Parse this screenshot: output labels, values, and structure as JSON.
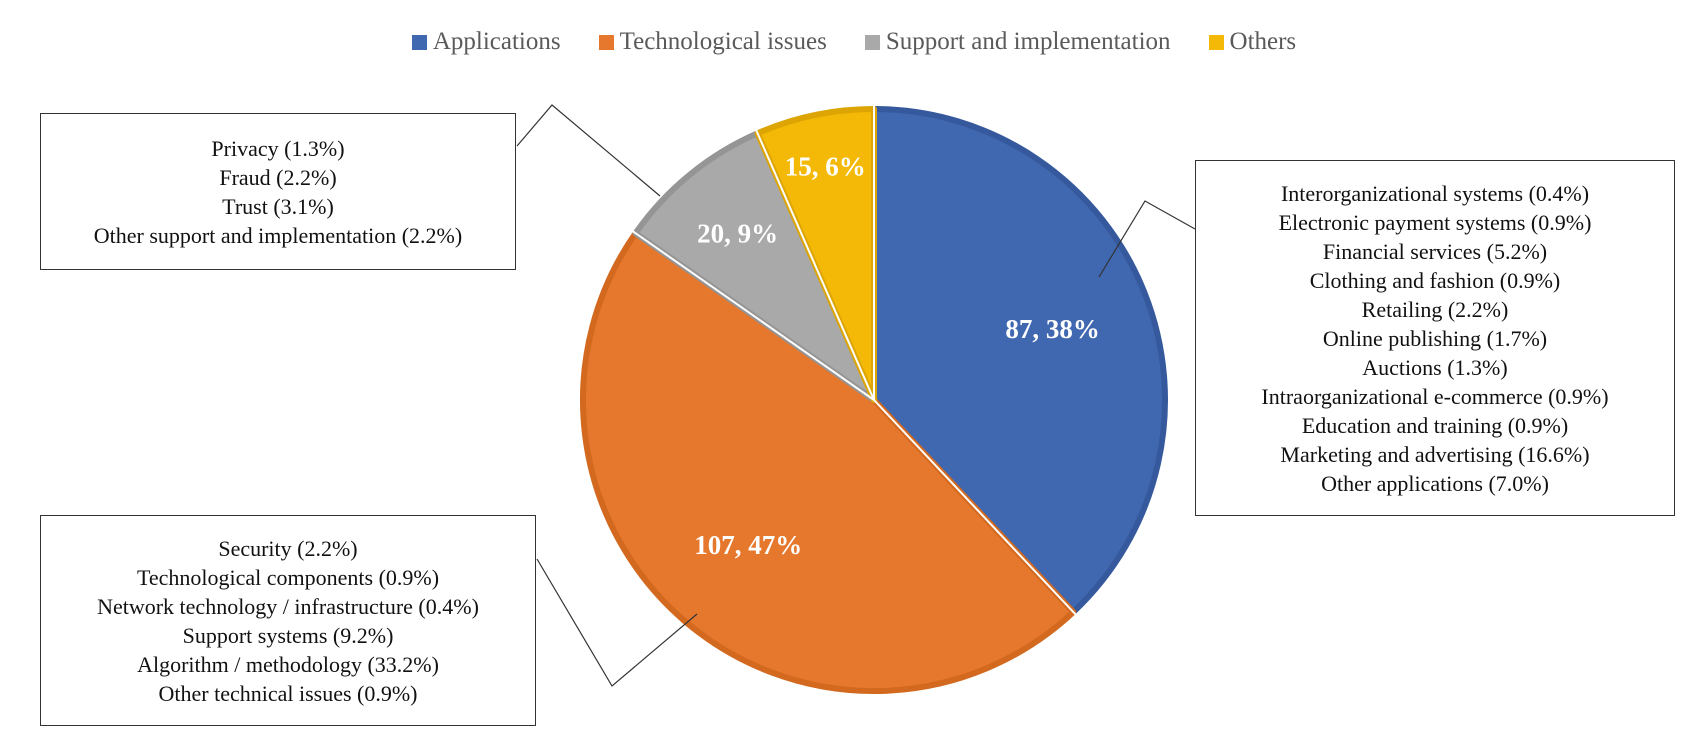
{
  "chart_data": {
    "type": "pie",
    "series": [
      {
        "name": "Applications",
        "value": 87,
        "percent": 38,
        "label": "87, 38%",
        "color": "#4068b0"
      },
      {
        "name": "Technological issues",
        "value": 107,
        "percent": 47,
        "label": "107, 47%",
        "color": "#e6782d"
      },
      {
        "name": "Support and implementation",
        "value": 20,
        "percent": 9,
        "label": "20, 9%",
        "color": "#a9a9a9"
      },
      {
        "name": "Others",
        "value": 15,
        "percent": 6,
        "label": "15, 6%",
        "color": "#f4b906"
      }
    ],
    "legend_position": "top"
  },
  "callouts": {
    "applications": [
      "Interorganizational systems (0.4%)",
      "Electronic payment systems (0.9%)",
      "Financial services (5.2%)",
      "Clothing and fashion (0.9%)",
      "Retailing (2.2%)",
      "Online publishing (1.7%)",
      "Auctions (1.3%)",
      "Intraorganizational e-commerce (0.9%)",
      "Education and training (0.9%)",
      "Marketing and advertising (16.6%)",
      "Other applications (7.0%)"
    ],
    "technological": [
      "Security (2.2%)",
      "Technological components (0.9%)",
      "Network technology / infrastructure (0.4%)",
      "Support systems (9.2%)",
      "Algorithm / methodology (33.2%)",
      "Other technical issues (0.9%)"
    ],
    "support": [
      "Privacy (1.3%)",
      "Fraud (2.2%)",
      "Trust (3.1%)",
      "Other support and implementation (2.2%)"
    ]
  }
}
